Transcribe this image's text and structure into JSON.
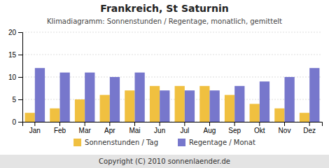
{
  "chart_data": {
    "type": "bar",
    "title": "Frankreich, St Saturnin",
    "subtitle": "Klimadiagramm: Sonnenstunden / Regentage, monatlich, gemittelt",
    "categories": [
      "Jan",
      "Feb",
      "Mar",
      "Apr",
      "Mai",
      "Jun",
      "Jul",
      "Aug",
      "Sep",
      "Okt",
      "Nov",
      "Dez"
    ],
    "series": [
      {
        "name": "Sonnenstunden / Tag",
        "color": "#f0c040",
        "values": [
          2,
          3,
          5,
          6,
          7,
          8,
          8,
          8,
          6,
          4,
          3,
          2
        ]
      },
      {
        "name": "Regentage / Monat",
        "color": "#7777cc",
        "values": [
          12,
          11,
          11,
          10,
          11,
          7,
          7,
          7,
          8,
          9,
          10,
          12
        ]
      }
    ],
    "ylim": [
      0,
      20
    ],
    "yticks": [
      0,
      5,
      10,
      15,
      20
    ],
    "grid": true,
    "legend": "bottom",
    "annotations": [
      "Copyright (C) 2010 sonnenlaender.de"
    ]
  }
}
